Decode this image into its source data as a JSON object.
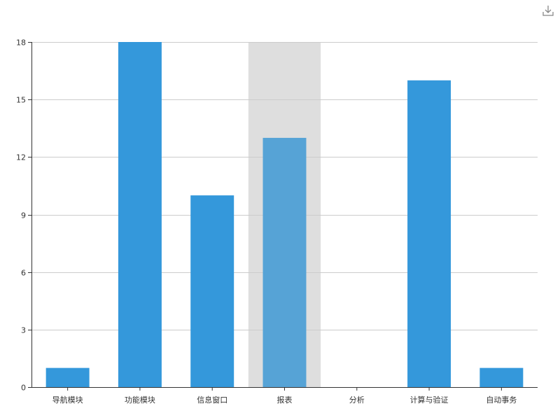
{
  "toolbar": {
    "download_icon": "download-icon"
  },
  "chart_data": {
    "type": "bar",
    "categories": [
      "导航模块",
      "功能模块",
      "信息窗口",
      "报表",
      "分析",
      "计算与验证",
      "自动事务"
    ],
    "values": [
      1,
      18,
      10,
      13,
      0,
      16,
      1
    ],
    "ylim": [
      0,
      18
    ],
    "yticks": [
      0,
      3,
      6,
      9,
      12,
      15,
      18
    ],
    "grid": true,
    "highlighted_category": "报表",
    "colors": {
      "bar": "#3498db",
      "bar_highlight": "#56a3d6",
      "highlight_band": "#dedede"
    }
  }
}
